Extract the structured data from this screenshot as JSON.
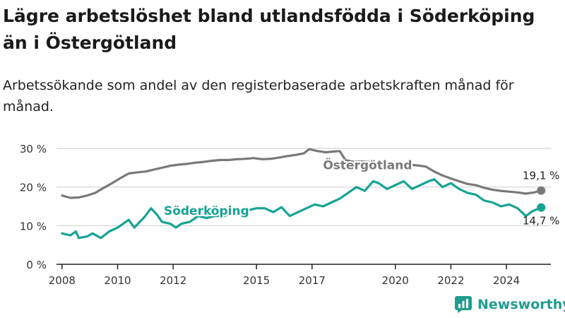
{
  "header": {
    "title": "Lägre arbetslöshet bland utlandsfödda i Söderköping än i Östergötland",
    "subtitle": "Arbetssökande som andel av den registerbaserade arbetskraften månad för månad."
  },
  "brand": {
    "name": "Newsworthy",
    "icon": "bar-chart-logo-icon",
    "color": "#1f9d8e"
  },
  "chart_data": {
    "type": "line",
    "xlabel": "",
    "ylabel": "",
    "xlim": [
      2007.8,
      2025.6
    ],
    "ylim": [
      0,
      30
    ],
    "y_ticks": [
      {
        "value": 0,
        "label": "0 %"
      },
      {
        "value": 10,
        "label": "10 %"
      },
      {
        "value": 20,
        "label": "20 %"
      },
      {
        "value": 30,
        "label": "30 %"
      }
    ],
    "x_ticks": [
      {
        "value": 2008,
        "label": "2008"
      },
      {
        "value": 2010,
        "label": "2010"
      },
      {
        "value": 2012,
        "label": "2012"
      },
      {
        "value": 2015,
        "label": "2015"
      },
      {
        "value": 2017,
        "label": "2017"
      },
      {
        "value": 2020,
        "label": "2020"
      },
      {
        "value": 2022,
        "label": "2022"
      },
      {
        "value": 2024,
        "label": "2024"
      }
    ],
    "grid": true,
    "series": [
      {
        "name": "Östergötland",
        "color": "#7a7878",
        "end_label": "19,1 %",
        "points": [
          [
            2008.0,
            17.8
          ],
          [
            2008.3,
            17.2
          ],
          [
            2008.6,
            17.3
          ],
          [
            2008.9,
            17.8
          ],
          [
            2009.2,
            18.5
          ],
          [
            2009.5,
            19.8
          ],
          [
            2009.8,
            21.0
          ],
          [
            2010.1,
            22.3
          ],
          [
            2010.4,
            23.5
          ],
          [
            2010.7,
            23.8
          ],
          [
            2011.0,
            24.0
          ],
          [
            2011.3,
            24.5
          ],
          [
            2011.6,
            25.0
          ],
          [
            2011.9,
            25.5
          ],
          [
            2012.2,
            25.8
          ],
          [
            2012.5,
            26.0
          ],
          [
            2012.8,
            26.3
          ],
          [
            2013.1,
            26.5
          ],
          [
            2013.4,
            26.8
          ],
          [
            2013.7,
            27.0
          ],
          [
            2014.0,
            27.0
          ],
          [
            2014.3,
            27.2
          ],
          [
            2014.6,
            27.3
          ],
          [
            2014.9,
            27.5
          ],
          [
            2015.2,
            27.2
          ],
          [
            2015.5,
            27.3
          ],
          [
            2015.8,
            27.6
          ],
          [
            2016.1,
            28.0
          ],
          [
            2016.4,
            28.3
          ],
          [
            2016.7,
            28.7
          ],
          [
            2016.9,
            29.8
          ],
          [
            2017.2,
            29.3
          ],
          [
            2017.5,
            29.0
          ],
          [
            2017.8,
            29.2
          ],
          [
            2018.0,
            29.3
          ],
          [
            2018.2,
            27.0
          ],
          [
            2018.5,
            26.5
          ],
          [
            2018.8,
            26.6
          ],
          [
            2019.0,
            26.5
          ],
          [
            2019.3,
            26.4
          ],
          [
            2019.6,
            26.3
          ],
          [
            2019.9,
            26.2
          ],
          [
            2020.2,
            26.0
          ],
          [
            2020.5,
            25.8
          ],
          [
            2020.8,
            25.6
          ],
          [
            2021.1,
            25.3
          ],
          [
            2021.4,
            24.0
          ],
          [
            2021.7,
            23.0
          ],
          [
            2022.0,
            22.2
          ],
          [
            2022.3,
            21.5
          ],
          [
            2022.6,
            20.8
          ],
          [
            2022.9,
            20.5
          ],
          [
            2023.2,
            19.8
          ],
          [
            2023.5,
            19.3
          ],
          [
            2023.8,
            19.0
          ],
          [
            2024.1,
            18.8
          ],
          [
            2024.4,
            18.6
          ],
          [
            2024.7,
            18.3
          ],
          [
            2025.0,
            18.6
          ],
          [
            2025.25,
            19.1
          ]
        ]
      },
      {
        "name": "Söderköping",
        "color": "#16a394",
        "end_label": "14,7 %",
        "points": [
          [
            2008.0,
            8.0
          ],
          [
            2008.3,
            7.5
          ],
          [
            2008.5,
            8.5
          ],
          [
            2008.6,
            6.8
          ],
          [
            2008.9,
            7.2
          ],
          [
            2009.1,
            8.0
          ],
          [
            2009.4,
            6.8
          ],
          [
            2009.7,
            8.5
          ],
          [
            2010.0,
            9.5
          ],
          [
            2010.2,
            10.5
          ],
          [
            2010.4,
            11.5
          ],
          [
            2010.6,
            9.5
          ],
          [
            2010.8,
            11.0
          ],
          [
            2011.0,
            12.5
          ],
          [
            2011.2,
            14.5
          ],
          [
            2011.4,
            13.0
          ],
          [
            2011.6,
            11.0
          ],
          [
            2011.9,
            10.5
          ],
          [
            2012.1,
            9.5
          ],
          [
            2012.3,
            10.5
          ],
          [
            2012.6,
            11.0
          ],
          [
            2012.9,
            12.5
          ],
          [
            2013.2,
            12.0
          ],
          [
            2013.5,
            12.5
          ],
          [
            2013.8,
            12.5
          ],
          [
            2014.1,
            13.0
          ],
          [
            2014.4,
            13.5
          ],
          [
            2014.7,
            14.0
          ],
          [
            2015.0,
            14.5
          ],
          [
            2015.3,
            14.5
          ],
          [
            2015.6,
            13.5
          ],
          [
            2015.9,
            14.8
          ],
          [
            2016.2,
            12.5
          ],
          [
            2016.5,
            13.5
          ],
          [
            2016.8,
            14.5
          ],
          [
            2017.1,
            15.5
          ],
          [
            2017.4,
            15.0
          ],
          [
            2017.7,
            16.0
          ],
          [
            2018.0,
            17.0
          ],
          [
            2018.3,
            18.5
          ],
          [
            2018.6,
            20.0
          ],
          [
            2018.9,
            19.0
          ],
          [
            2019.2,
            21.5
          ],
          [
            2019.4,
            21.0
          ],
          [
            2019.7,
            19.5
          ],
          [
            2020.0,
            20.5
          ],
          [
            2020.3,
            21.5
          ],
          [
            2020.6,
            19.5
          ],
          [
            2020.9,
            20.5
          ],
          [
            2021.2,
            21.5
          ],
          [
            2021.4,
            22.0
          ],
          [
            2021.7,
            20.0
          ],
          [
            2022.0,
            21.0
          ],
          [
            2022.3,
            19.5
          ],
          [
            2022.6,
            18.5
          ],
          [
            2022.9,
            18.0
          ],
          [
            2023.2,
            16.5
          ],
          [
            2023.5,
            16.0
          ],
          [
            2023.8,
            15.0
          ],
          [
            2024.1,
            15.5
          ],
          [
            2024.4,
            14.5
          ],
          [
            2024.7,
            12.5
          ],
          [
            2024.95,
            13.8
          ],
          [
            2025.25,
            14.7
          ]
        ]
      }
    ],
    "labels": [
      {
        "series": "Östergötland",
        "text": "Östergötland",
        "at": [
          2019.0,
          24.6
        ]
      },
      {
        "series": "Söderköping",
        "text": "Söderköping",
        "at": [
          2013.2,
          12.8
        ]
      }
    ]
  }
}
